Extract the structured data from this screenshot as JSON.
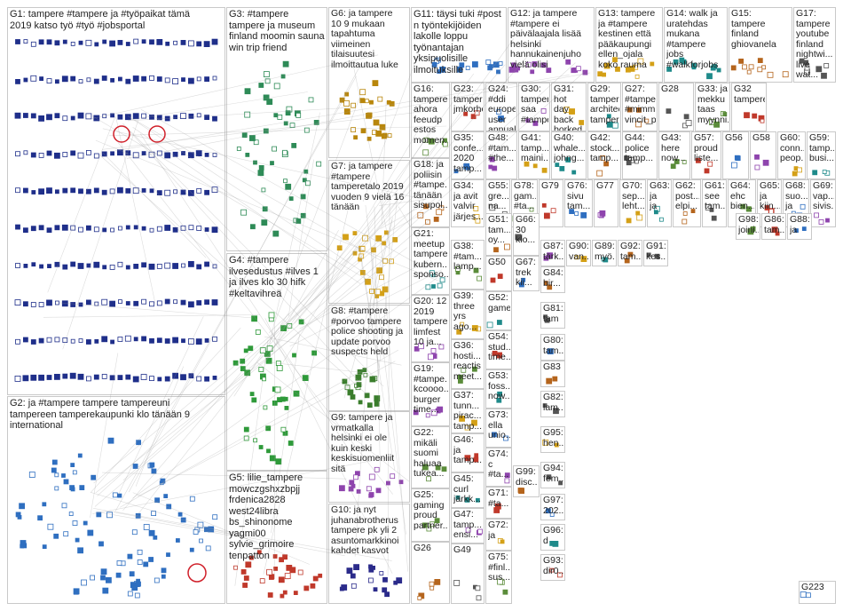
{
  "accent_colors": {
    "G1": "#1f2f8a",
    "G2": "#2f6fc0",
    "G3": "#2e8b57",
    "G4": "#2f9a3a",
    "G5": "#c0392b",
    "G6": "#b8860b",
    "G7": "#d4a017",
    "G8": "#3a7d2c",
    "G9": "#8e44ad",
    "G10": "#2b2b8a",
    "edge": "#9a9a9a",
    "panel_border": "#c9c9c9"
  },
  "groups": [
    {
      "id": "G1",
      "label": "G1: tampere #tampere ja #työpaikat tämä\n2019 katso työ #työ #jobsportal"
    },
    {
      "id": "G2",
      "label": "G2: ja #tampere tampere tampereuni\ntampereen tamperekaupunki klo tänään 9\ninternational"
    },
    {
      "id": "G3",
      "label": "G3: #tampere\ntampere ja museum\nfinland moomin sauna\nwin trip friend"
    },
    {
      "id": "G4",
      "label": "G4: #tampere\nilvesedustus #ilves 1\nja ilves klo 30 hifk\n#keltavihreä"
    },
    {
      "id": "G5",
      "label": "G5: lilie_tampere\nmowczgshxzbpjj\nfrdenica2828\nwest24libra\nbs_shinonome\nyagmi00\nsylvie_grimoire\ntenpatton"
    },
    {
      "id": "G6",
      "label": "G6: ja tampere\n10 9 mukaan\ntapahtuma\nviimeinen\ntilaisuutesi\nilmoittautua luke"
    },
    {
      "id": "G7",
      "label": "G7: ja tampere\n#tampere\ntamperetalo 2019\nvuoden 9 vielä 16\ntänään"
    },
    {
      "id": "G8",
      "label": "G8: #tampere\n#porvoo tampere\npolice shooting ja\nupdate porvoo\nsuspects held"
    },
    {
      "id": "G9",
      "label": "G9: tampere ja\nvrmatkalla\nhelsinki ei ole\nkuin keski\nkeskisuomenliit\nsitä"
    },
    {
      "id": "G10",
      "label": "G10: ja nyt\njuhanabrotherus\ntampere pk yli 2\nasuntomarkkinoi\nkahdet kasvot"
    },
    {
      "id": "G11",
      "label": "G11: täysi tuki #post\nn työntekijöiden\nlakolle loppu\ntyönantajan\nyksipuolisille\nilmoituksille"
    },
    {
      "id": "G12",
      "label": "G12: ja tampere\n#tampere ei\npäivälaajala lisää\nhelsinki\nhannukainenjuho\nvielä olisi"
    },
    {
      "id": "G13",
      "label": "G13: tampere\nja #tampere\nkestinen että\npääkaupungi\nellen_ojala\nkoko rauma"
    },
    {
      "id": "G14",
      "label": "G14: walk ja\nuratehdas\nmukana\n#tampere\njobs\n#walkforjobs"
    },
    {
      "id": "G15",
      "label": "G15:\ntampere\nfinland\nghiovanela"
    },
    {
      "id": "G17",
      "label": "G17:\ntampere\nyoutube\nfinland\nnightwi...\nlive wat..."
    },
    {
      "id": "G16",
      "label": "G16:\ntampere\nahora\nfeeudp\nestos\nmomen..."
    },
    {
      "id": "G23",
      "label": "G23:\ntampere\njmkorho..."
    },
    {
      "id": "G24",
      "label": "G24: #ddi\neuropean\nuser\nannual..."
    },
    {
      "id": "G30",
      "label": "G30:\ntampere\nsaa\n#tampe..."
    },
    {
      "id": "G31",
      "label": "G31: hot\nday back\nborked\nstay..."
    },
    {
      "id": "G29",
      "label": "G29:\ntampere\narchitec...\ntampere"
    },
    {
      "id": "G27",
      "label": "G27:\n#tampe...\n#mimmi...\nvincit_p..."
    },
    {
      "id": "G28",
      "label": "G28"
    },
    {
      "id": "G33",
      "label": "G33: ja\nmekku\ntaas\nmyynni..."
    },
    {
      "id": "G32",
      "label": "G32\ntampere"
    },
    {
      "id": "G35",
      "label": "G35:\nconfe...\n2020\ntamp..."
    },
    {
      "id": "G48",
      "label": "G48:\n#tam...\n#the..."
    },
    {
      "id": "G41",
      "label": "G41:\ntamp...\nmaini..."
    },
    {
      "id": "G40",
      "label": "G40:\nwhale...\njohng..."
    },
    {
      "id": "G42",
      "label": "G42:\nstock...\ntamp..."
    },
    {
      "id": "G44",
      "label": "G44:\npolice\ntamp..."
    },
    {
      "id": "G43",
      "label": "G43:\nhere\nnow..."
    },
    {
      "id": "G57",
      "label": "G57:\nproud\nliste..."
    },
    {
      "id": "G56",
      "label": "G56"
    },
    {
      "id": "G58",
      "label": "G58"
    },
    {
      "id": "G60",
      "label": "G60:\nconn...\npeop..."
    },
    {
      "id": "G59",
      "label": "G59:\ntamp...\nbusi..."
    },
    {
      "id": "G18",
      "label": "G18: ja\npoliisin\n#tampe...\ntänään\nsisupol..."
    },
    {
      "id": "G55",
      "label": "G55:\ngre...\nna..."
    },
    {
      "id": "G78",
      "label": "G78:\ngam...\n#ta..."
    },
    {
      "id": "G79",
      "label": "G79"
    },
    {
      "id": "G76",
      "label": "G76:\nsivu\ntam..."
    },
    {
      "id": "G77",
      "label": "G77"
    },
    {
      "id": "G70",
      "label": "G70:\nsep...\nleht..."
    },
    {
      "id": "G63",
      "label": "G63:\nja\nja"
    },
    {
      "id": "G62",
      "label": "G62:\npost...\nelpi..."
    },
    {
      "id": "G61",
      "label": "G61:\nsee\ntam..."
    },
    {
      "id": "G64",
      "label": "G64:\nehc\nbien..."
    },
    {
      "id": "G65",
      "label": "G65:\nja\nkiin..."
    },
    {
      "id": "G68",
      "label": "G68:\nsuo...\nja"
    },
    {
      "id": "G69",
      "label": "G69:\nvap...\nsivis..."
    },
    {
      "id": "G34",
      "label": "G34:\nja avit\nvalvir\njärjes..."
    },
    {
      "id": "G21",
      "label": "G21:\nmeetup\ntampere\nkubern...\nsponso..."
    },
    {
      "id": "G51",
      "label": "G51:\ntam...\noy..."
    },
    {
      "id": "G66",
      "label": "G66:\n30\nklo..."
    },
    {
      "id": "G38",
      "label": "G38:\n#tam...\nlamp..."
    },
    {
      "id": "G50",
      "label": "G50"
    },
    {
      "id": "G67",
      "label": "G67:\ntrek\nkii..."
    },
    {
      "id": "G87",
      "label": "G87:\ntärk..."
    },
    {
      "id": "G90",
      "label": "G90:\nvan..."
    },
    {
      "id": "G89",
      "label": "G89:\nmyö..."
    },
    {
      "id": "G92",
      "label": "G92:\ntam..."
    },
    {
      "id": "G91",
      "label": "G91:\nkes..."
    },
    {
      "id": "G98",
      "label": "G98:\njoini..."
    },
    {
      "id": "G86",
      "label": "G86:\ntam..."
    },
    {
      "id": "G88",
      "label": "G88:\nja"
    },
    {
      "id": "G20",
      "label": "G20: 12\n2019\ntampere\nlimfest\n10 ja..."
    },
    {
      "id": "G39",
      "label": "G39:\nthree\nyrs\nago..."
    },
    {
      "id": "G52",
      "label": "G52:\ngame"
    },
    {
      "id": "G84",
      "label": "G84:\nbir..."
    },
    {
      "id": "G81",
      "label": "G81:\ntam"
    },
    {
      "id": "G36",
      "label": "G36:\nhosti...\nreactis\nmeet..."
    },
    {
      "id": "G54",
      "label": "G54:\nstud...\ntime..."
    },
    {
      "id": "G80",
      "label": "G80:\ntam..."
    },
    {
      "id": "G19",
      "label": "G19:\n#tampe...\nkcoooo...\nburger\ntime..."
    },
    {
      "id": "G37",
      "label": "G37:\ntunn...\npirac...\ntamp..."
    },
    {
      "id": "G53",
      "label": "G53:\nfoss...\nnow..."
    },
    {
      "id": "G83",
      "label": "G83"
    },
    {
      "id": "G82",
      "label": "G82:\nlam..."
    },
    {
      "id": "G22",
      "label": "G22:\nmikäli\nsuomi\nhaluaa\ntukea..."
    },
    {
      "id": "G46",
      "label": "G46:\nja\ntamp..."
    },
    {
      "id": "G73",
      "label": "G73:\nella\nunio..."
    },
    {
      "id": "G74",
      "label": "G74:\nc\n#ta..."
    },
    {
      "id": "G95",
      "label": "G95:\nhen..."
    },
    {
      "id": "G45",
      "label": "G45:\ncurl\njärkk..."
    },
    {
      "id": "G99",
      "label": "G99:\ndisc..."
    },
    {
      "id": "G94",
      "label": "G94:\nfem..."
    },
    {
      "id": "G25",
      "label": "G25:\ngaming\nproud\npartner..."
    },
    {
      "id": "G71",
      "label": "G71:\n#ta..."
    },
    {
      "id": "G97",
      "label": "G97:\n202..."
    },
    {
      "id": "G47",
      "label": "G47:\ntamp...\nensi..."
    },
    {
      "id": "G72",
      "label": "G72:\nja"
    },
    {
      "id": "G96",
      "label": "G96:\nd"
    },
    {
      "id": "G26",
      "label": "G26"
    },
    {
      "id": "G49",
      "label": "G49"
    },
    {
      "id": "G75",
      "label": "G75:\n#finl...\nsus..."
    },
    {
      "id": "G93",
      "label": "G93:\ndir0..."
    },
    {
      "id": "G223",
      "label": "G223"
    }
  ]
}
